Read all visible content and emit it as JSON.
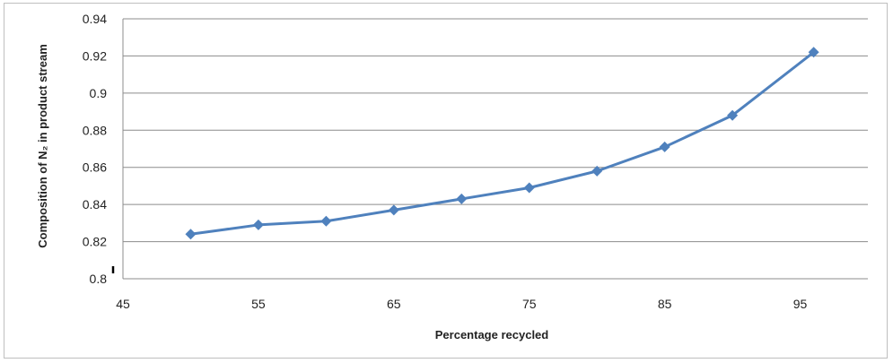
{
  "chart_data": {
    "type": "line",
    "title": "",
    "xlabel": "Percentage recycled",
    "ylabel": "Composition of N₂ in product stream",
    "xlim": [
      45,
      100
    ],
    "ylim": [
      0.8,
      0.94
    ],
    "x_ticks": [
      "45",
      "55",
      "65",
      "75",
      "85",
      "95"
    ],
    "y_ticks": [
      "0.8",
      "0.82",
      "0.84",
      "0.86",
      "0.88",
      "0.9",
      "0.92",
      "0.94"
    ],
    "grid": "horizontal",
    "legend": "none",
    "series": [
      {
        "color": "#4f81bd",
        "marker": "diamond",
        "x": [
          50,
          55,
          60,
          65,
          70,
          75,
          80,
          85,
          90,
          96
        ],
        "y": [
          0.824,
          0.829,
          0.831,
          0.837,
          0.843,
          0.849,
          0.858,
          0.871,
          0.888,
          0.922
        ]
      }
    ]
  }
}
